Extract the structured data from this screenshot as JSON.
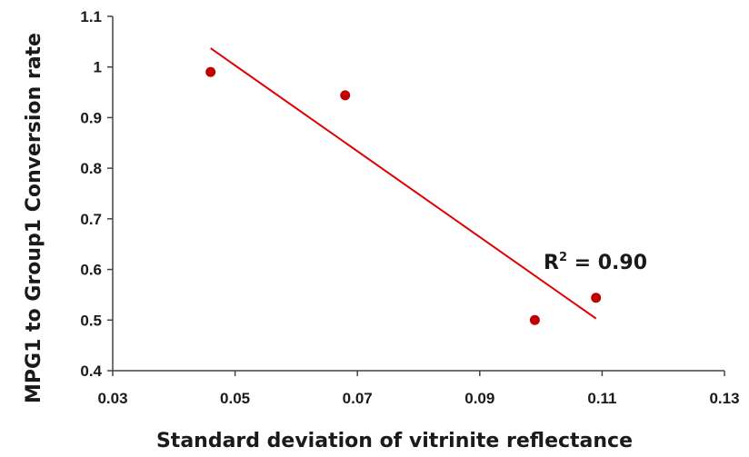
{
  "chart_data": {
    "type": "scatter",
    "title": "",
    "xlabel": "Standard deviation of vitrinite reflectance",
    "ylabel": "MPG1 to Group1 Conversion rate",
    "xlim": [
      0.03,
      0.13
    ],
    "ylim": [
      0.4,
      1.1
    ],
    "x_ticks": [
      0.03,
      0.05,
      0.07,
      0.09,
      0.11,
      0.13
    ],
    "x_tick_labels": [
      "0.03",
      "0.05",
      "0.07",
      "0.09",
      "0.11",
      "0.13"
    ],
    "y_ticks": [
      0.4,
      0.5,
      0.6,
      0.7,
      0.8,
      0.9,
      1.0,
      1.1
    ],
    "y_tick_labels": [
      "0.4",
      "0.5",
      "0.6",
      "0.7",
      "0.8",
      "0.9",
      "1",
      "1.1"
    ],
    "grid": false,
    "legend": "none",
    "series": [
      {
        "name": "data",
        "x": [
          0.046,
          0.068,
          0.099,
          0.109
        ],
        "y": [
          0.99,
          0.944,
          0.5,
          0.544
        ],
        "color": "#c00000"
      }
    ],
    "trendline": {
      "type": "linear",
      "x": [
        0.046,
        0.109
      ],
      "y": [
        1.037,
        0.503
      ],
      "color": "#e00000"
    },
    "annotation": {
      "text_base": "R",
      "text_sup": "2",
      "text_rest": " = 0.90"
    }
  }
}
